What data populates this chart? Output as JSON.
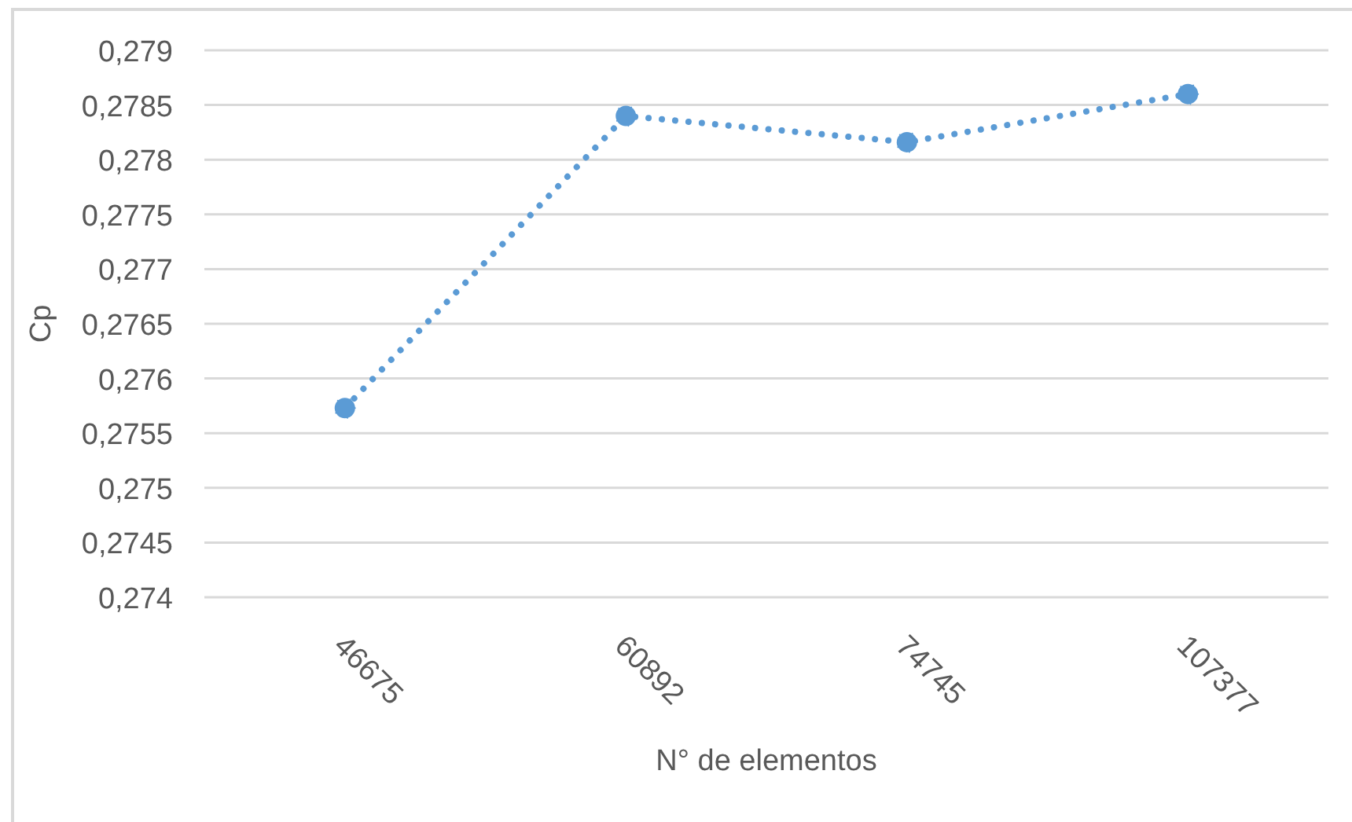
{
  "chart_data": {
    "type": "line",
    "xlabel": "N° de elementos",
    "ylabel": "Cp",
    "categories": [
      "46675",
      "60892",
      "74745",
      "107377"
    ],
    "series": [
      {
        "color": "#5b9bd5",
        "values": [
          0.27573,
          0.2784,
          0.27816,
          0.2786
        ]
      }
    ],
    "ylim": [
      0.274,
      0.279
    ],
    "yticks": [
      {
        "value": 0.274,
        "label": "0,274"
      },
      {
        "value": 0.2745,
        "label": "0,2745"
      },
      {
        "value": 0.275,
        "label": "0,275"
      },
      {
        "value": 0.2755,
        "label": "0,2755"
      },
      {
        "value": 0.276,
        "label": "0,276"
      },
      {
        "value": 0.2765,
        "label": "0,2765"
      },
      {
        "value": 0.277,
        "label": "0,277"
      },
      {
        "value": 0.2775,
        "label": "0,2775"
      },
      {
        "value": 0.278,
        "label": "0,278"
      },
      {
        "value": 0.2785,
        "label": "0,2785"
      },
      {
        "value": 0.279,
        "label": "0,279"
      }
    ],
    "grid": "y",
    "marker": "circle",
    "line_style": "dotted"
  }
}
